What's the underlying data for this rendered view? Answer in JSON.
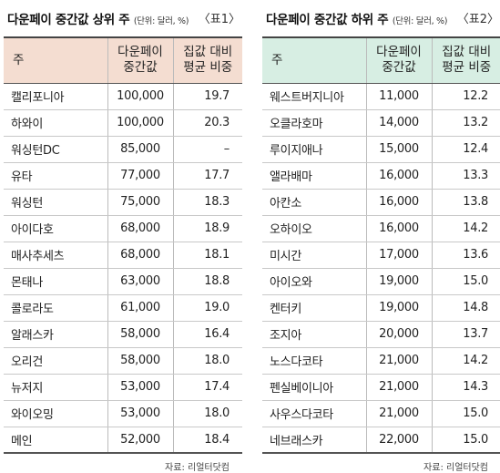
{
  "unit_text": "(단위: 달러, %)",
  "left": {
    "title": "다운페이 중간값 상위 주",
    "table_label": "〈표1〉",
    "headers": {
      "state": "주",
      "median_1": "다운페이",
      "median_2": "중간값",
      "ratio_1": "집값 대비",
      "ratio_2": "평균 비중"
    },
    "rows": [
      {
        "state": "캘리포니아",
        "median": "100,000",
        "ratio": "19.7"
      },
      {
        "state": "하와이",
        "median": "100,000",
        "ratio": "20.3"
      },
      {
        "state": "워싱턴DC",
        "median": "85,000",
        "ratio": "–"
      },
      {
        "state": "유타",
        "median": "77,000",
        "ratio": "17.7"
      },
      {
        "state": "워싱턴",
        "median": "75,000",
        "ratio": "18.3"
      },
      {
        "state": "아이다호",
        "median": "68,000",
        "ratio": "18.9"
      },
      {
        "state": "매사추세츠",
        "median": "68,000",
        "ratio": "18.1"
      },
      {
        "state": "몬태나",
        "median": "63,000",
        "ratio": "18.8"
      },
      {
        "state": "콜로라도",
        "median": "61,000",
        "ratio": "19.0"
      },
      {
        "state": "알래스카",
        "median": "58,000",
        "ratio": "16.4"
      },
      {
        "state": "오리건",
        "median": "58,000",
        "ratio": "18.0"
      },
      {
        "state": "뉴저지",
        "median": "53,000",
        "ratio": "17.4"
      },
      {
        "state": "와이오밍",
        "median": "53,000",
        "ratio": "18.0"
      },
      {
        "state": "메인",
        "median": "52,000",
        "ratio": "18.4"
      }
    ],
    "source": "자료: 리얼터닷컴"
  },
  "right": {
    "title": "다운페이 중간값 하위 주",
    "table_label": "〈표2〉",
    "headers": {
      "state": "주",
      "median_1": "다운페이",
      "median_2": "중간값",
      "ratio_1": "집값 대비",
      "ratio_2": "평균 비중"
    },
    "rows": [
      {
        "state": "웨스트버지니아",
        "median": "11,000",
        "ratio": "12.2"
      },
      {
        "state": "오클라호마",
        "median": "14,000",
        "ratio": "13.2"
      },
      {
        "state": "루이지애나",
        "median": "15,000",
        "ratio": "12.4"
      },
      {
        "state": "앨라배마",
        "median": "16,000",
        "ratio": "13.3"
      },
      {
        "state": "아칸소",
        "median": "16,000",
        "ratio": "13.8"
      },
      {
        "state": "오하이오",
        "median": "16,000",
        "ratio": "14.2"
      },
      {
        "state": "미시간",
        "median": "17,000",
        "ratio": "13.6"
      },
      {
        "state": "아이오와",
        "median": "19,000",
        "ratio": "15.0"
      },
      {
        "state": "켄터키",
        "median": "19,000",
        "ratio": "14.8"
      },
      {
        "state": "조지아",
        "median": "20,000",
        "ratio": "13.7"
      },
      {
        "state": "노스다코타",
        "median": "21,000",
        "ratio": "14.2"
      },
      {
        "state": "펜실베이니아",
        "median": "21,000",
        "ratio": "14.3"
      },
      {
        "state": "사우스다코타",
        "median": "21,000",
        "ratio": "15.0"
      },
      {
        "state": "네브래스카",
        "median": "22,000",
        "ratio": "15.0"
      }
    ],
    "source": "자료: 리얼터닷컴"
  },
  "colors": {
    "left_header_bg": "#f4ddd1",
    "right_header_bg": "#d7eee3"
  }
}
